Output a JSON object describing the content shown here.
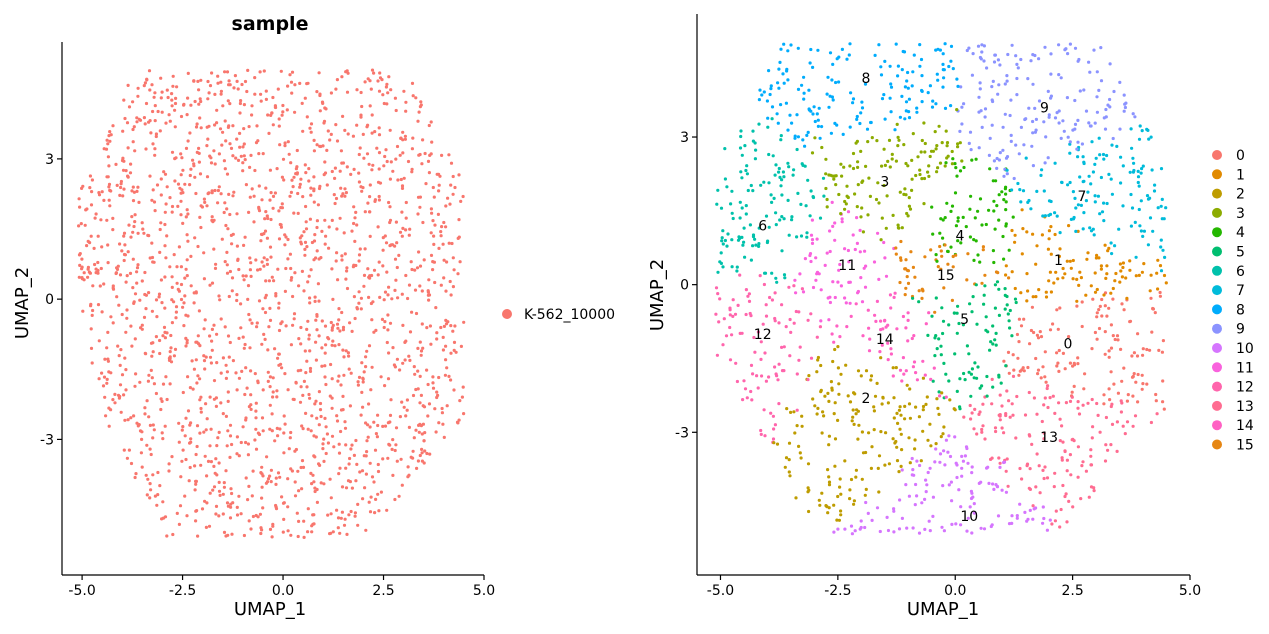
{
  "chart_data": [
    {
      "type": "scatter",
      "title": "sample",
      "xlabel": "UMAP_1",
      "ylabel": "UMAP_2",
      "xlim": [
        -5.5,
        5.0
      ],
      "ylim": [
        -5.9,
        5.5
      ],
      "xticks": [
        -5.0,
        -2.5,
        0.0,
        2.5,
        5.0
      ],
      "xtick_labels": [
        "-5.0",
        "-2.5",
        "0.0",
        "2.5",
        "5.0"
      ],
      "yticks": [
        -3,
        0,
        3
      ],
      "ytick_labels": [
        "-3",
        "0",
        "3"
      ],
      "grid": false,
      "legend_position": "right",
      "series": [
        {
          "name": "K-562_10000",
          "color": "#F8766D"
        }
      ]
    },
    {
      "type": "scatter",
      "title": "",
      "xlabel": "UMAP_1",
      "ylabel": "UMAP_2",
      "xlim": [
        -5.5,
        5.0
      ],
      "ylim": [
        -5.9,
        5.5
      ],
      "xticks": [
        -5.0,
        -2.5,
        0.0,
        2.5,
        5.0
      ],
      "xtick_labels": [
        "-5.0",
        "-2.5",
        "0.0",
        "2.5",
        "5.0"
      ],
      "yticks": [
        -3,
        0,
        3
      ],
      "ytick_labels": [
        "-3",
        "0",
        "3"
      ],
      "grid": false,
      "legend_position": "right",
      "series": [
        {
          "name": "0",
          "color": "#F8766D",
          "label_x": 2.4,
          "label_y": -1.2
        },
        {
          "name": "1",
          "color": "#E18A00",
          "label_x": 2.2,
          "label_y": 0.5
        },
        {
          "name": "2",
          "color": "#BE9C00",
          "label_x": -1.9,
          "label_y": -2.3
        },
        {
          "name": "3",
          "color": "#8CAB00",
          "label_x": -1.5,
          "label_y": 2.1
        },
        {
          "name": "4",
          "color": "#24B700",
          "label_x": 0.1,
          "label_y": 1.0
        },
        {
          "name": "5",
          "color": "#00BE70",
          "label_x": 0.2,
          "label_y": -0.7
        },
        {
          "name": "6",
          "color": "#00C1AB",
          "label_x": -4.1,
          "label_y": 1.2
        },
        {
          "name": "7",
          "color": "#00BBDA",
          "label_x": 2.7,
          "label_y": 1.8
        },
        {
          "name": "8",
          "color": "#00ACFC",
          "label_x": -1.9,
          "label_y": 4.2
        },
        {
          "name": "9",
          "color": "#8B93FF",
          "label_x": 1.9,
          "label_y": 3.6
        },
        {
          "name": "10",
          "color": "#D575FE",
          "label_x": 0.3,
          "label_y": -4.7
        },
        {
          "name": "11",
          "color": "#F962DD",
          "label_x": -2.3,
          "label_y": 0.4
        },
        {
          "name": "12",
          "color": "#FF65AC",
          "label_x": -4.1,
          "label_y": -1.0
        },
        {
          "name": "13",
          "color": "#FF6C91",
          "label_x": 2.0,
          "label_y": -3.1
        },
        {
          "name": "14",
          "color": "#FF61C3",
          "label_x": -1.5,
          "label_y": -1.1
        },
        {
          "name": "15",
          "color": "#E68613",
          "label_x": -0.2,
          "label_y": 0.2
        }
      ]
    }
  ]
}
